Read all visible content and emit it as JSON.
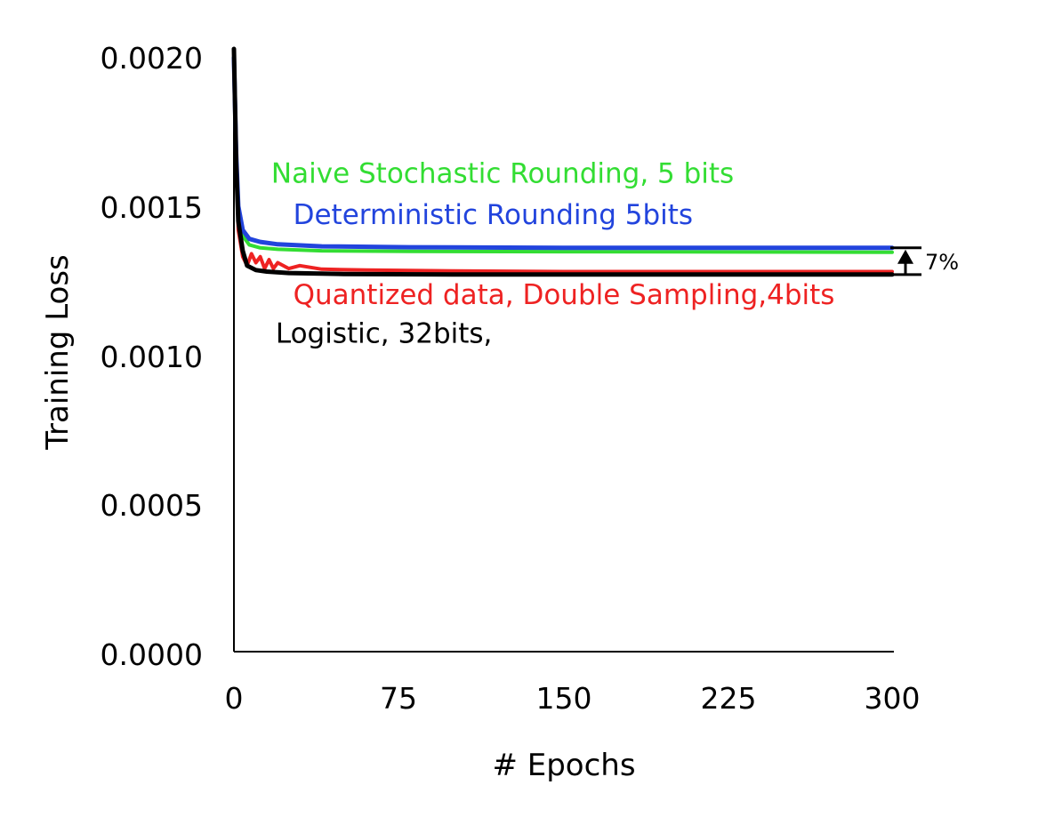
{
  "chart_data": {
    "type": "line",
    "xlabel": "# Epochs",
    "ylabel": "Training Loss",
    "xlim": [
      0,
      300
    ],
    "ylim": [
      0,
      0.002
    ],
    "xticks": [
      "0",
      "75",
      "150",
      "225",
      "300"
    ],
    "yticks": [
      "0.0000",
      "0.0005",
      "0.0010",
      "0.0015",
      "0.0020"
    ],
    "grid": false,
    "series": [
      {
        "name": "Naive Stochastic Rounding, 5 bits",
        "color": "#33dd33",
        "x": [
          0,
          1,
          2,
          4,
          7,
          12,
          20,
          40,
          80,
          150,
          225,
          300
        ],
        "y": [
          0.00198,
          0.00165,
          0.00148,
          0.0014,
          0.00137,
          0.00136,
          0.001355,
          0.00135,
          0.001348,
          0.001347,
          0.001346,
          0.001345
        ]
      },
      {
        "name": "Deterministic Rounding 5bits",
        "color": "#2244dd",
        "x": [
          0,
          1,
          2,
          4,
          7,
          12,
          20,
          40,
          80,
          150,
          225,
          300
        ],
        "y": [
          0.002,
          0.00168,
          0.0015,
          0.00142,
          0.00139,
          0.00138,
          0.001372,
          0.001365,
          0.001362,
          0.00136,
          0.00136,
          0.00136
        ]
      },
      {
        "name": "Quantized data, Double Sampling,4bits",
        "color": "#ee2222",
        "x": [
          0,
          2,
          4,
          6,
          8,
          10,
          12,
          14,
          16,
          18,
          20,
          25,
          30,
          40,
          60,
          100,
          150,
          225,
          300
        ],
        "y": [
          0.00198,
          0.00142,
          0.00133,
          0.0013,
          0.00134,
          0.00131,
          0.00133,
          0.00129,
          0.00132,
          0.00129,
          0.00131,
          0.00129,
          0.0013,
          0.001288,
          0.001285,
          0.001282,
          0.00128,
          0.00128,
          0.00128
        ]
      },
      {
        "name": "Logistic, 32bits,",
        "color": "#000000",
        "x": [
          0,
          1,
          2,
          4,
          6,
          10,
          15,
          25,
          50,
          100,
          150,
          225,
          300
        ],
        "y": [
          0.00203,
          0.00165,
          0.00145,
          0.00135,
          0.0013,
          0.001285,
          0.00128,
          0.001275,
          0.001272,
          0.00127,
          0.00127,
          0.00127,
          0.00127
        ]
      }
    ],
    "annotations": [
      {
        "text": "Naive Stochastic Rounding, 5 bits",
        "color": "#33dd33",
        "x": 17,
        "y": 0.00158
      },
      {
        "text": "Deterministic Rounding 5bits",
        "color": "#2244dd",
        "x": 27,
        "y": 0.00144
      },
      {
        "text": "Quantized data, Double Sampling,4bits",
        "color": "#ee2222",
        "x": 27,
        "y": 0.00117
      },
      {
        "text": "Logistic, 32bits,",
        "color": "#000000",
        "x": 19,
        "y": 0.00104
      }
    ],
    "gap_annotation": {
      "text": "7%",
      "y_low": 0.00127,
      "y_high": 0.00136
    }
  }
}
